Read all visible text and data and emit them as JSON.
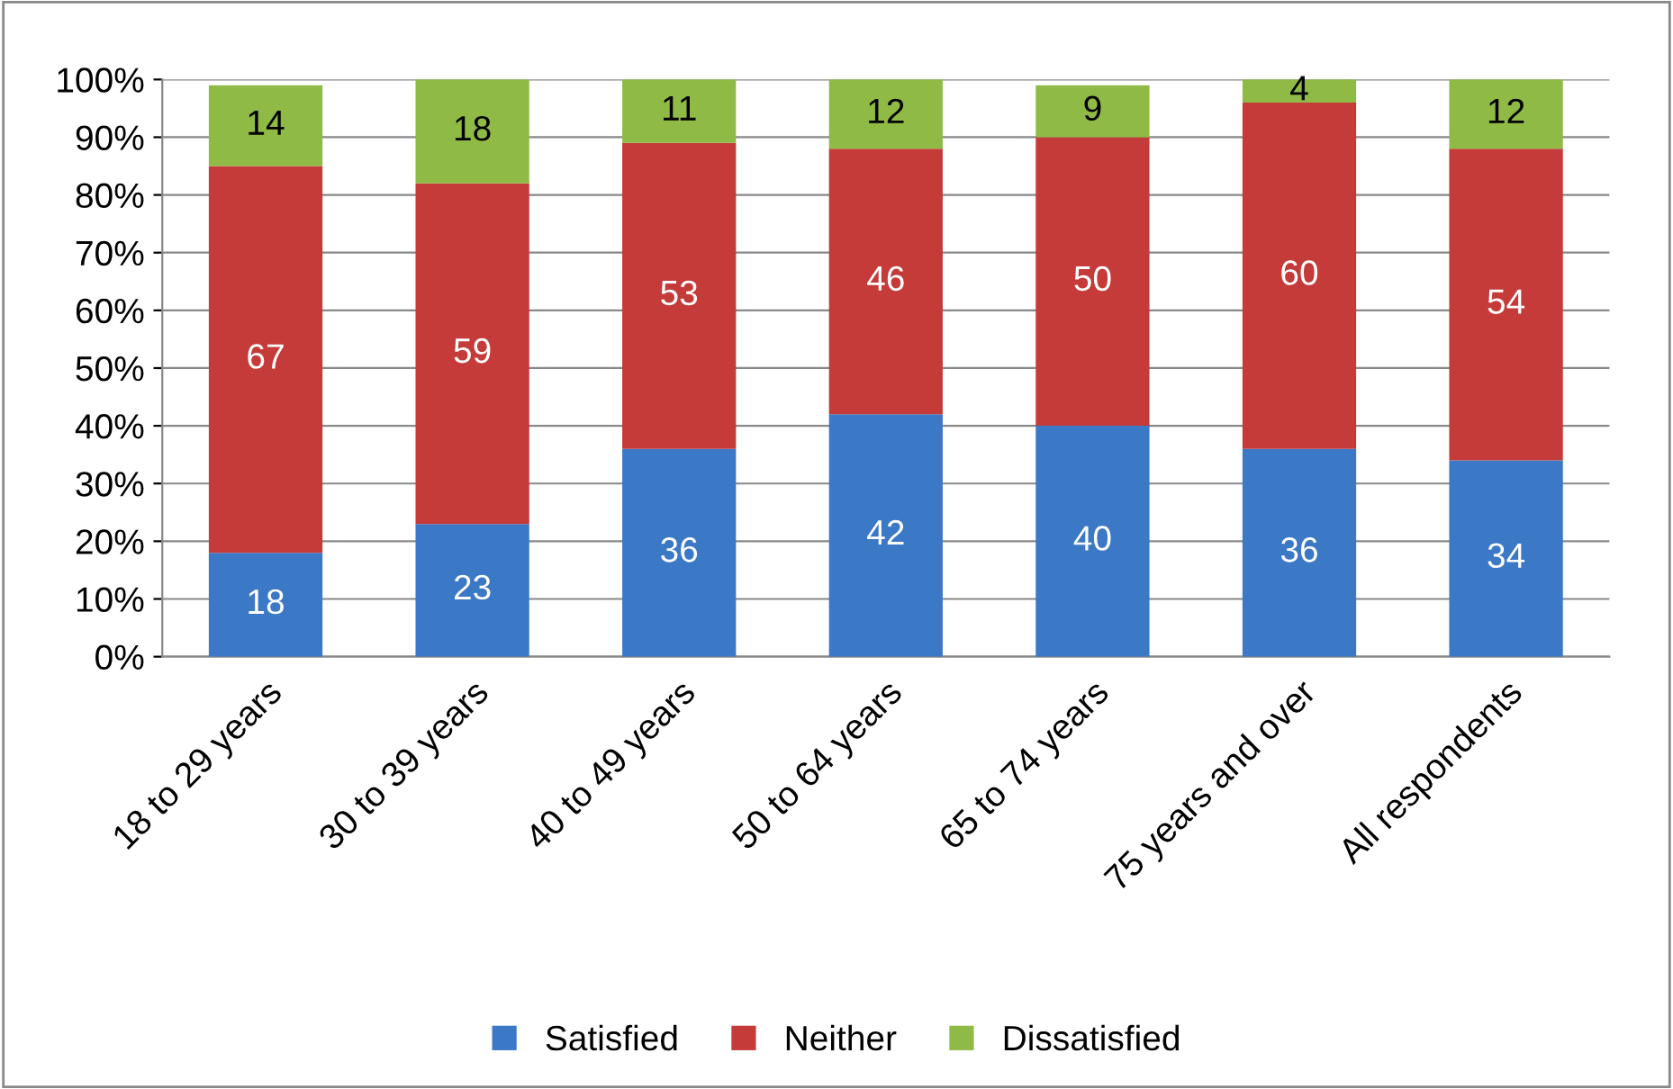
{
  "chart_data": {
    "type": "bar",
    "stacked": true,
    "data_labels": true,
    "categories": [
      "18 to 29 years",
      "30 to 39 years",
      "40 to 49 years",
      "50 to 64 years",
      "65 to 74 years",
      "75 years and over",
      "All respondents"
    ],
    "series": [
      {
        "name": "Satisfied",
        "color": "#3b78c6",
        "values": [
          18,
          23,
          36,
          42,
          40,
          36,
          34
        ]
      },
      {
        "name": "Neither",
        "color": "#c43b39",
        "values": [
          67,
          59,
          53,
          46,
          50,
          60,
          54
        ]
      },
      {
        "name": "Dissatisfied",
        "color": "#8fba45",
        "values": [
          14,
          18,
          11,
          12,
          9,
          4,
          12
        ]
      }
    ],
    "ylim": [
      0,
      100
    ],
    "yticks": [
      {
        "value": 0,
        "label": "0%"
      },
      {
        "value": 10,
        "label": "10%"
      },
      {
        "value": 20,
        "label": "20%"
      },
      {
        "value": 30,
        "label": "30%"
      },
      {
        "value": 40,
        "label": "40%"
      },
      {
        "value": 50,
        "label": "50%"
      },
      {
        "value": 60,
        "label": "60%"
      },
      {
        "value": 70,
        "label": "70%"
      },
      {
        "value": 80,
        "label": "80%"
      },
      {
        "value": 90,
        "label": "90%"
      },
      {
        "value": 100,
        "label": "100%"
      }
    ],
    "grid": "y",
    "legend": "bottom"
  }
}
